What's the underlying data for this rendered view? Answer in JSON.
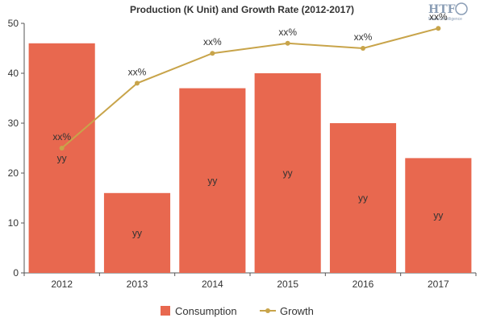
{
  "chart_data": {
    "type": "bar",
    "title": "Production (K Unit) and Growth Rate (2012-2017)",
    "categories": [
      "2012",
      "2013",
      "2014",
      "2015",
      "2016",
      "2017"
    ],
    "ylim": [
      0,
      50
    ],
    "yticks": [
      "0",
      "10",
      "20",
      "30",
      "40",
      "50"
    ],
    "grid": false,
    "legend_position": "bottom-center",
    "series": [
      {
        "name": "Consumption",
        "type": "bar",
        "color": "#e8684f",
        "values": [
          46,
          16,
          37,
          40,
          30,
          23
        ],
        "labels": [
          "yy",
          "yy",
          "yy",
          "yy",
          "yy",
          "yy"
        ]
      },
      {
        "name": "Growth",
        "type": "line",
        "color": "#c8a44a",
        "values": [
          25,
          38,
          44,
          46,
          45,
          49
        ],
        "labels": [
          "xx%",
          "xx%",
          "xx%",
          "xx%",
          "xx%",
          "xx%"
        ]
      }
    ]
  },
  "logo": {
    "text": "HTF",
    "subtext": "Market Intelligence"
  }
}
